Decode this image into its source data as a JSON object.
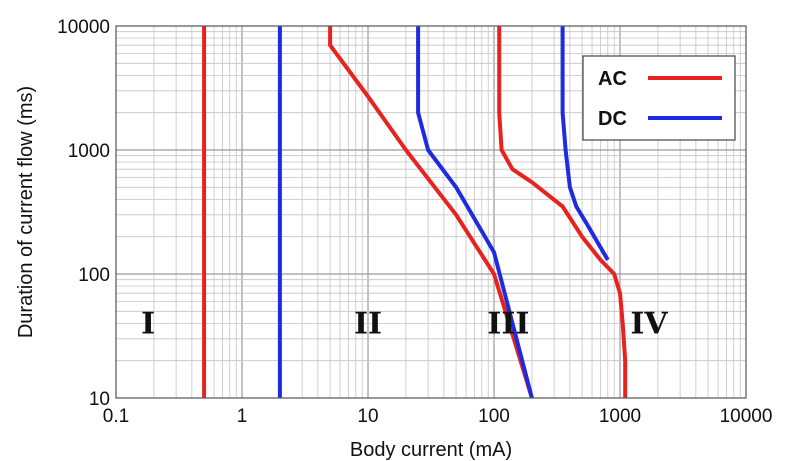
{
  "chart_data": {
    "type": "line",
    "xlabel": "Body current (mA)",
    "ylabel": "Duration of current flow (ms)",
    "x_scale": "log",
    "y_scale": "log",
    "xlim": [
      0.1,
      10000
    ],
    "ylim": [
      10,
      10000
    ],
    "grid": true,
    "x_ticks": [
      "0.1",
      "1",
      "10",
      "100",
      "1000",
      "10000"
    ],
    "y_ticks": [
      "10",
      "100",
      "1000",
      "10000"
    ],
    "legend": {
      "position": "top-right",
      "entries": [
        {
          "label": "AC",
          "color": "#e8231f"
        },
        {
          "label": "DC",
          "color": "#1f2be0"
        }
      ]
    },
    "region_labels": [
      {
        "text": "I",
        "x": 0.18,
        "y": 40
      },
      {
        "text": "II",
        "x": 10,
        "y": 40
      },
      {
        "text": "III",
        "x": 130,
        "y": 40
      },
      {
        "text": "IV",
        "x": 1700,
        "y": 40
      }
    ],
    "series": [
      {
        "name": "AC",
        "color": "#e8231f",
        "points": [
          [
            0.5,
            10
          ],
          [
            0.5,
            10000
          ]
        ]
      },
      {
        "name": "DC",
        "color": "#1f2be0",
        "points": [
          [
            2,
            10
          ],
          [
            2,
            10000
          ]
        ]
      },
      {
        "name": "AC",
        "color": "#e8231f",
        "points": [
          [
            5,
            10000
          ],
          [
            5,
            7000
          ],
          [
            10,
            2700
          ],
          [
            20,
            1000
          ],
          [
            50,
            300
          ],
          [
            100,
            100
          ],
          [
            200,
            10
          ]
        ]
      },
      {
        "name": "DC",
        "color": "#1f2be0",
        "points": [
          [
            25,
            10000
          ],
          [
            25,
            2000
          ],
          [
            30,
            1000
          ],
          [
            50,
            500
          ],
          [
            100,
            150
          ],
          [
            200,
            10
          ]
        ]
      },
      {
        "name": "AC",
        "color": "#e8231f",
        "points": [
          [
            110,
            10000
          ],
          [
            110,
            2000
          ],
          [
            115,
            1000
          ],
          [
            140,
            700
          ],
          [
            200,
            550
          ],
          [
            350,
            350
          ],
          [
            500,
            200
          ],
          [
            700,
            130
          ],
          [
            900,
            100
          ],
          [
            1000,
            70
          ],
          [
            1050,
            40
          ],
          [
            1100,
            20
          ],
          [
            1100,
            10
          ]
        ]
      },
      {
        "name": "DC",
        "color": "#1f2be0",
        "points": [
          [
            350,
            10000
          ],
          [
            350,
            2000
          ],
          [
            370,
            1000
          ],
          [
            400,
            500
          ],
          [
            450,
            350
          ],
          [
            550,
            250
          ],
          [
            800,
            130
          ]
        ]
      }
    ]
  }
}
